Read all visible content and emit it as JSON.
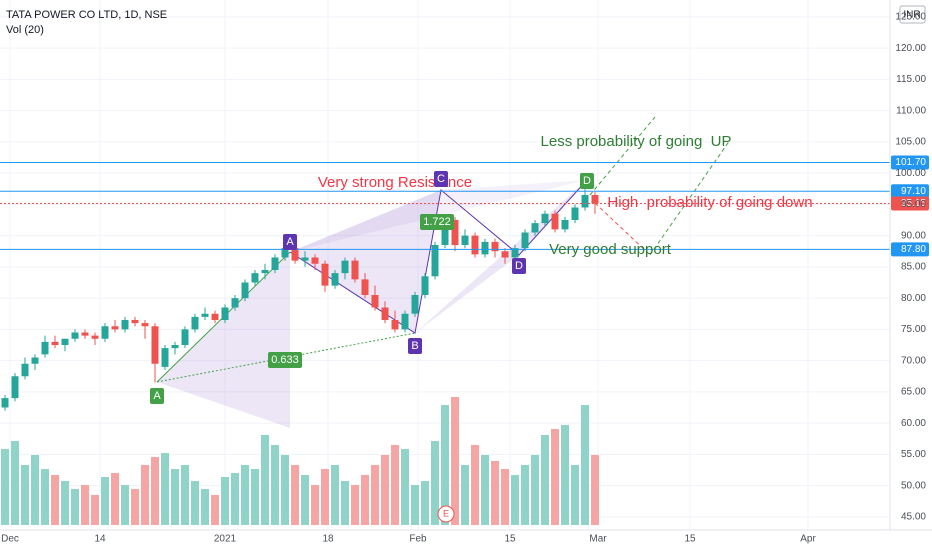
{
  "chart_data": {
    "type": "candlestick",
    "title": "TATA POWER CO LTD, 1D, NSE",
    "subtitle": "Vol (20)",
    "currency": "INR",
    "up_color": "#26a69a",
    "down_color": "#ef5350",
    "volume_up_color": "#8fd3c9",
    "volume_down_color": "#f5a5a3",
    "xlim": [
      -0.5,
      88.5
    ],
    "xticks": [
      {
        "value": 0.5,
        "label": "Dec"
      },
      {
        "value": 9.5,
        "label": "14"
      },
      {
        "value": 22,
        "label": "2021"
      },
      {
        "value": 32.3,
        "label": "18"
      },
      {
        "value": 41.3,
        "label": "Feb"
      },
      {
        "value": 50.5,
        "label": "15"
      },
      {
        "value": 59.3,
        "label": "Mar"
      },
      {
        "value": 68.5,
        "label": "15"
      },
      {
        "value": 80.3,
        "label": "Apr"
      }
    ],
    "ylim": [
      42.9,
      127.7
    ],
    "yticks": [
      {
        "value": 45,
        "label": "45.00"
      },
      {
        "value": 50,
        "label": "50.00"
      },
      {
        "value": 55,
        "label": "55.00"
      },
      {
        "value": 60,
        "label": "60.00"
      },
      {
        "value": 65,
        "label": "65.00"
      },
      {
        "value": 70,
        "label": "70.00"
      },
      {
        "value": 75,
        "label": "75.00"
      },
      {
        "value": 80,
        "label": "80.00"
      },
      {
        "value": 85,
        "label": "85.00"
      },
      {
        "value": 90,
        "label": "90.00"
      },
      {
        "value": 95,
        "label": "95.00"
      },
      {
        "value": 100,
        "label": "100.00"
      },
      {
        "value": 105,
        "label": "105.00"
      },
      {
        "value": 110,
        "label": "110.00"
      },
      {
        "value": 115,
        "label": "115.00"
      },
      {
        "value": 120,
        "label": "120.00"
      },
      {
        "value": 125,
        "label": "125.00"
      }
    ],
    "open": [
      62.5,
      64,
      67.5,
      69.5,
      71,
      73,
      72.5,
      73.5,
      74.5,
      74,
      73.5,
      75.5,
      75,
      76.5,
      76,
      75.5,
      69,
      72,
      72.5,
      75,
      77,
      77.5,
      76.5,
      78.5,
      80,
      82.5,
      84,
      84.5,
      86.5,
      88,
      86,
      86.5,
      85.5,
      82,
      84,
      86,
      83,
      80.5,
      78.5,
      76.5,
      75,
      77.5,
      80.5,
      83.5,
      88.5,
      92.5,
      88.5,
      90,
      87,
      89,
      87.5,
      86.5,
      88,
      90.5,
      92,
      93.5,
      91,
      92.5,
      94.5,
      96.5
    ],
    "high": [
      64.5,
      68,
      70.5,
      71,
      74,
      74,
      73.5,
      75,
      75,
      74.5,
      76,
      76.5,
      77,
      77,
      76.5,
      76,
      72.5,
      73,
      75.5,
      77.5,
      78.5,
      78,
      79,
      80.5,
      83,
      84.5,
      85.5,
      87,
      89,
      88.5,
      87.5,
      87,
      86,
      84.5,
      86.5,
      86.5,
      84,
      82,
      79.5,
      78,
      78,
      81,
      84,
      89,
      93,
      93,
      91,
      90.5,
      89.5,
      89.5,
      88,
      88.5,
      91,
      92.5,
      94,
      94,
      93,
      95,
      97.5,
      97
    ],
    "low": [
      62,
      63.5,
      67,
      68.5,
      70.5,
      72,
      71.5,
      73,
      73.5,
      72.5,
      73,
      74.5,
      74.5,
      75.5,
      73.5,
      66.5,
      68.5,
      71,
      72,
      74.5,
      76.5,
      76,
      76,
      78,
      79.5,
      82,
      83,
      84,
      86,
      85.5,
      85,
      84.5,
      81,
      81.5,
      83,
      82.5,
      80,
      78,
      76,
      74.5,
      74.5,
      77,
      80,
      83,
      88,
      87.5,
      88,
      86.5,
      86.5,
      86.5,
      85.5,
      86,
      87.5,
      90,
      91.5,
      90.5,
      90.5,
      92,
      94,
      93.5
    ],
    "close": [
      64,
      67.5,
      69.5,
      70.5,
      73,
      72.5,
      73.5,
      74.5,
      74,
      73.5,
      75.5,
      75,
      76.5,
      76,
      75.5,
      69.5,
      72,
      72.5,
      75,
      77,
      77.5,
      76.5,
      78.5,
      80,
      82.5,
      84,
      84.5,
      86.5,
      88,
      86,
      86.5,
      85.5,
      82,
      84,
      86,
      83,
      80.5,
      78.5,
      76.5,
      75,
      77.5,
      80.5,
      83.5,
      88.5,
      92.5,
      88.5,
      90,
      87,
      89,
      87.5,
      86.5,
      88,
      90.5,
      92,
      93.5,
      91,
      92.5,
      94.5,
      96.5,
      95.15
    ],
    "volume": [
      38,
      42,
      30,
      35,
      28,
      25,
      22,
      18,
      20,
      15,
      24,
      26,
      20,
      18,
      30,
      34,
      36,
      28,
      30,
      22,
      18,
      15,
      24,
      26,
      30,
      28,
      45,
      40,
      35,
      30,
      25,
      20,
      28,
      30,
      22,
      20,
      25,
      30,
      35,
      40,
      38,
      20,
      22,
      42,
      60,
      64,
      30,
      40,
      35,
      32,
      28,
      25,
      30,
      35,
      45,
      48,
      50,
      30,
      60,
      35
    ],
    "levels": [
      {
        "value": 101.7,
        "label": "101.70",
        "color": "#2196f3"
      },
      {
        "value": 97.1,
        "label": "97.10",
        "color": "#2196f3"
      },
      {
        "value": 95.15,
        "label": "95.15",
        "color": "#ef5350"
      },
      {
        "value": 87.8,
        "label": "87.80",
        "color": "#2196f3"
      }
    ],
    "annotations": [
      "Very strong Resistance",
      "Less probability of going  UP",
      "High  probability of going down",
      "Very good support"
    ],
    "pattern_labels": [
      "A",
      "A",
      "B",
      "C",
      "D",
      "D",
      "1.722",
      "0.633",
      "E"
    ]
  }
}
